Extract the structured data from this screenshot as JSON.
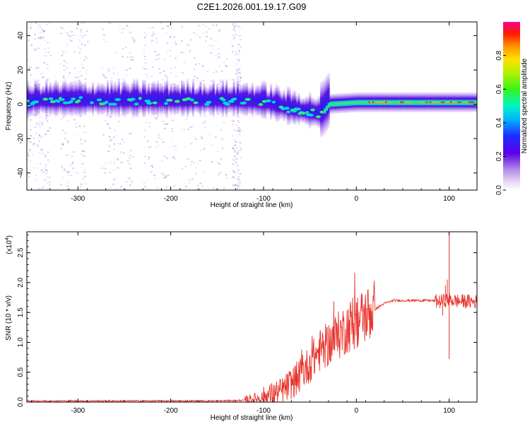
{
  "title": "C2E1.2026.001.19.17.G09",
  "chart_data": [
    {
      "type": "heatmap",
      "xlabel": "Height of straight line (km)",
      "ylabel": "Frequency (Hz)",
      "xlim": [
        -355,
        130
      ],
      "ylim": [
        -50,
        48
      ],
      "xticks": [
        -300,
        -200,
        -100,
        0,
        100
      ],
      "yticks": [
        -40,
        -20,
        0,
        20,
        40
      ],
      "colorbar": {
        "label": "Normalized spectral amplitude",
        "range": [
          0,
          1
        ],
        "ticks": [
          0.0,
          0.2,
          0.4,
          0.6,
          0.8
        ],
        "tick_labels": [
          "0.0",
          "0.2",
          "0.4",
          "0.6",
          "0.8"
        ]
      },
      "ridge": {
        "description_points_km_hz": [
          [
            -350,
            2
          ],
          [
            -200,
            2
          ],
          [
            -130,
            2
          ],
          [
            -100,
            1
          ],
          [
            -70,
            -3
          ],
          [
            -50,
            -5
          ],
          [
            -38,
            -6
          ],
          [
            -30,
            0
          ],
          [
            0,
            1
          ],
          [
            130,
            1
          ]
        ],
        "band_halfwidth_hz": 5
      }
    },
    {
      "type": "line",
      "xlabel": "Height of straight line (km)",
      "ylabel": "SNR (10 * v/v)",
      "y_multiplier": "(x10",
      "y_multiplier_exp": "4",
      "y_multiplier_close": ")",
      "xlim": [
        -355,
        130
      ],
      "ylim": [
        0,
        2.85
      ],
      "xticks": [
        -300,
        -200,
        -100,
        0,
        100
      ],
      "yticks": [
        0.0,
        0.5,
        1.0,
        1.5,
        2.0,
        2.5
      ],
      "ytick_labels": [
        "0.0",
        "0.5",
        "1.0",
        "1.5",
        "2.0",
        "2.5"
      ],
      "series": [
        {
          "name": "SNR",
          "color": "#e8332b",
          "envelope_x": [
            -355,
            -150,
            -120,
            -100,
            -80,
            -60,
            -40,
            -20,
            -10,
            0,
            10,
            20,
            30,
            40,
            60,
            80,
            90,
            95,
            100,
            103,
            110,
            130
          ],
          "envelope_y": [
            0.02,
            0.02,
            0.03,
            0.08,
            0.18,
            0.45,
            0.85,
            1.1,
            1.25,
            1.35,
            1.45,
            1.55,
            1.65,
            1.7,
            1.7,
            1.7,
            1.68,
            1.7,
            1.72,
            1.7,
            1.69,
            1.68
          ],
          "spikes": [
            {
              "x": 100,
              "y": 2.85
            },
            {
              "x": 100,
              "y": 0.72
            },
            {
              "x": 98,
              "y": 2.05
            },
            {
              "x": 96,
              "y": 1.95
            },
            {
              "x": 93,
              "y": 1.45
            }
          ]
        }
      ]
    }
  ]
}
